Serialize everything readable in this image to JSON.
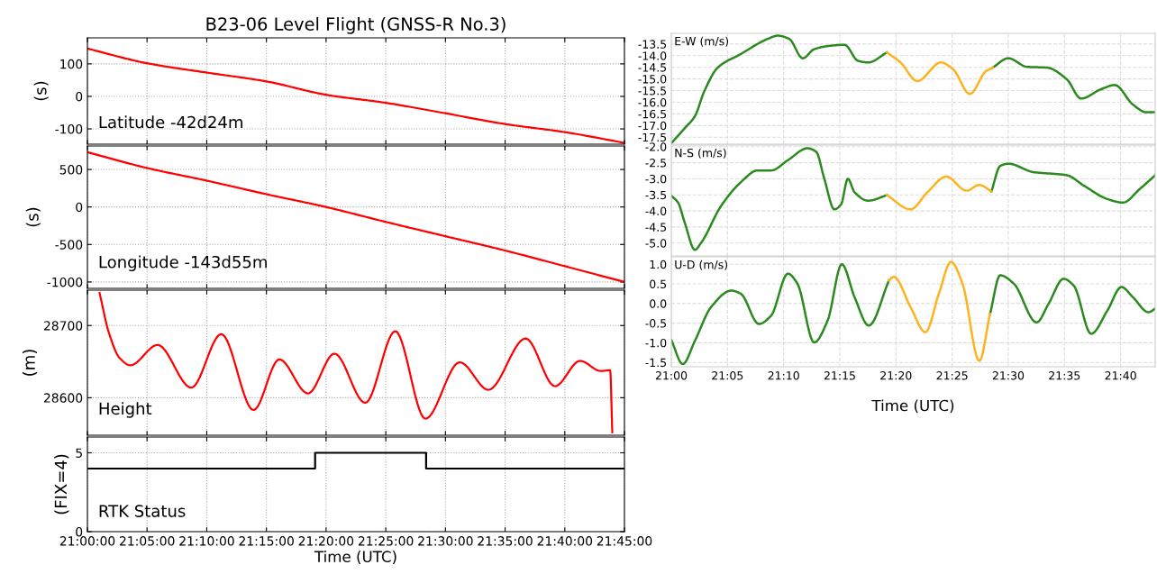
{
  "chart_data": [
    {
      "type": "line",
      "title": "B23-06 Level Flight (GNSS-R No.3)",
      "ylabel": "(s)",
      "annotations": [
        "Latitude -42d24m"
      ],
      "tick_labels": "y",
      "grid": true,
      "x": [
        21.0,
        21.083,
        21.167,
        21.25,
        21.333,
        21.417,
        21.5,
        21.583,
        21.667,
        21.75
      ],
      "series": [
        {
          "color": "#ff0000",
          "values": [
            147,
            102,
            73,
            46,
            5,
            -20,
            -52,
            -85,
            -110,
            -143
          ]
        }
      ],
      "xlim": [
        21.0,
        21.75
      ],
      "xticks": [
        {
          "value": 21.0,
          "label": null
        },
        {
          "value": 21.0833,
          "label": null
        },
        {
          "value": 21.1667,
          "label": null
        },
        {
          "value": 21.25,
          "label": null
        },
        {
          "value": 21.3333,
          "label": null
        },
        {
          "value": 21.4167,
          "label": null
        },
        {
          "value": 21.5,
          "label": null
        },
        {
          "value": 21.5833,
          "label": null
        },
        {
          "value": 21.6667,
          "label": null
        },
        {
          "value": 21.75,
          "label": null
        }
      ],
      "ylim": [
        -147,
        180
      ],
      "yticks": [
        -100,
        0,
        100
      ]
    },
    {
      "type": "line",
      "ylabel": "(s)",
      "annotations": [
        "Longitude -143d55m"
      ],
      "tick_labels": "y",
      "grid": true,
      "x": [
        21.0,
        21.083,
        21.167,
        21.25,
        21.333,
        21.417,
        21.5,
        21.583,
        21.667,
        21.75
      ],
      "series": [
        {
          "color": "#ff0000",
          "values": [
            730,
            520,
            350,
            170,
            0,
            -200,
            -390,
            -580,
            -790,
            -1000
          ]
        }
      ],
      "xlim": [
        21.0,
        21.75
      ],
      "xticks": [
        {
          "value": 21.0,
          "label": null
        },
        {
          "value": 21.0833,
          "label": null
        },
        {
          "value": 21.1667,
          "label": null
        },
        {
          "value": 21.25,
          "label": null
        },
        {
          "value": 21.3333,
          "label": null
        },
        {
          "value": 21.4167,
          "label": null
        },
        {
          "value": 21.5,
          "label": null
        },
        {
          "value": 21.5833,
          "label": null
        },
        {
          "value": 21.6667,
          "label": null
        },
        {
          "value": 21.75,
          "label": null
        }
      ],
      "ylim": [
        -1085,
        813
      ],
      "yticks": [
        -1000,
        -500,
        0,
        500
      ]
    },
    {
      "type": "line",
      "ylabel": "(m)",
      "annotations": [
        "Height"
      ],
      "tick_labels": "y",
      "grid": true,
      "x": [
        21.017,
        21.03,
        21.045,
        21.06,
        21.098,
        21.145,
        21.187,
        21.232,
        21.268,
        21.308,
        21.345,
        21.388,
        21.43,
        21.472,
        21.52,
        21.56,
        21.612,
        21.653,
        21.688,
        21.717,
        21.73,
        21.733
      ],
      "series": [
        {
          "color": "#ff0000",
          "values": [
            28745,
            28690,
            28655,
            28645,
            28673,
            28614,
            28688,
            28583,
            28653,
            28606,
            28661,
            28593,
            28692,
            28571,
            28649,
            28611,
            28682,
            28616,
            28651,
            28637,
            28638,
            28552
          ]
        }
      ],
      "xlim": [
        21.0,
        21.75
      ],
      "xticks": [
        {
          "value": 21.0,
          "label": null
        },
        {
          "value": 21.0833,
          "label": null
        },
        {
          "value": 21.1667,
          "label": null
        },
        {
          "value": 21.25,
          "label": null
        },
        {
          "value": 21.3333,
          "label": null
        },
        {
          "value": 21.4167,
          "label": null
        },
        {
          "value": 21.5,
          "label": null
        },
        {
          "value": 21.5833,
          "label": null
        },
        {
          "value": 21.6667,
          "label": null
        },
        {
          "value": 21.75,
          "label": null
        }
      ],
      "ylim": [
        28548,
        28749
      ],
      "yticks": [
        28600,
        28700
      ]
    },
    {
      "type": "step",
      "xlabel": "Time (UTC)",
      "ylabel": "(FIX=4)",
      "annotations": [
        "RTK Status"
      ],
      "grid": true,
      "x": [
        21.0,
        21.318,
        21.473,
        21.75
      ],
      "series": [
        {
          "color": "#000000",
          "values": [
            4,
            5,
            4,
            4
          ]
        }
      ],
      "xlim": [
        21.0,
        21.75
      ],
      "xticks": [
        {
          "value": 21.0,
          "label": "21:00:00"
        },
        {
          "value": 21.0833,
          "label": "21:05:00"
        },
        {
          "value": 21.1667,
          "label": "21:10:00"
        },
        {
          "value": 21.25,
          "label": "21:15:00"
        },
        {
          "value": 21.3333,
          "label": "21:20:00"
        },
        {
          "value": 21.4167,
          "label": "21:25:00"
        },
        {
          "value": 21.5,
          "label": "21:30:00"
        },
        {
          "value": 21.5833,
          "label": "21:35:00"
        },
        {
          "value": 21.6667,
          "label": "21:40:00"
        },
        {
          "value": 21.75,
          "label": "21:45:00"
        }
      ],
      "ylim": [
        0,
        6
      ],
      "yticks": [
        0,
        5
      ]
    },
    {
      "type": "line",
      "annotations": [
        "E-W (m/s)"
      ],
      "tick_labels": "y",
      "grid": true,
      "x": [
        21.0,
        21.02,
        21.035,
        21.049,
        21.069,
        21.103,
        21.143,
        21.158,
        21.175,
        21.195,
        21.212,
        21.237,
        21.257,
        21.277,
        21.292,
        21.32,
        21.34,
        21.365,
        21.4,
        21.418,
        21.443,
        21.467,
        21.477,
        21.5,
        21.528,
        21.557,
        21.587,
        21.608,
        21.637,
        21.658,
        21.685,
        21.705,
        21.718
      ],
      "series": [
        {
          "color": "#2a8a1e",
          "values": [
            -17.76,
            -17.11,
            -16.6,
            -15.52,
            -14.51,
            -13.93,
            -13.28,
            -13.14,
            -13.28,
            -14.11,
            -13.72,
            -13.57,
            -13.53,
            -14.22,
            -14.29,
            -13.86,
            null,
            null,
            null,
            null,
            null,
            null,
            -14.51,
            -14.11,
            -14.48,
            -14.51,
            -15.02,
            -15.84,
            -15.45,
            -15.26,
            -16.1,
            -16.43,
            -16.43
          ]
        },
        {
          "color": "#ffb21e",
          "x": [
            21.32,
            21.34,
            21.365,
            21.4,
            21.418,
            21.443,
            21.467,
            21.477
          ],
          "values": [
            -13.86,
            -14.29,
            -15.09,
            -14.29,
            -14.58,
            -15.64,
            -14.66,
            -14.51
          ]
        }
      ],
      "xlim": [
        21.0,
        21.718
      ],
      "xticks": [
        {
          "value": 21.0,
          "label": null
        },
        {
          "value": 21.0833,
          "label": null
        },
        {
          "value": 21.1667,
          "label": null
        },
        {
          "value": 21.25,
          "label": null
        },
        {
          "value": 21.3333,
          "label": null
        },
        {
          "value": 21.4167,
          "label": null
        },
        {
          "value": 21.5,
          "label": null
        },
        {
          "value": 21.5833,
          "label": null
        },
        {
          "value": 21.6667,
          "label": null
        }
      ],
      "ylim": [
        -17.8,
        -13.04
      ],
      "yticks": [
        -17.5,
        {
          "value": -17,
          "label": "-17.0"
        },
        -16.5,
        {
          "value": -16,
          "label": "-16.0"
        },
        -15.5,
        {
          "value": -15,
          "label": "-15.0"
        },
        -14.5,
        {
          "value": -14,
          "label": "-14.0"
        },
        -13.5
      ]
    },
    {
      "type": "line",
      "annotations": [
        "N-S (m/s)"
      ],
      "tick_labels": "y",
      "grid": true,
      "x": [
        21.0,
        21.01,
        21.02,
        21.035,
        21.044,
        21.074,
        21.103,
        21.128,
        21.148,
        21.173,
        21.202,
        21.215,
        21.227,
        21.242,
        21.252,
        21.262,
        21.272,
        21.292,
        21.32,
        21.355,
        21.38,
        21.408,
        21.438,
        21.457,
        21.475,
        21.488,
        21.5,
        21.537,
        21.587,
        21.612,
        21.647,
        21.67,
        21.695,
        21.718
      ],
      "series": [
        {
          "color": "#2a8a1e",
          "values": [
            -3.53,
            -3.74,
            -4.37,
            -5.21,
            -5.0,
            -3.84,
            -3.11,
            -2.74,
            -2.74,
            -2.42,
            -2.05,
            -2.16,
            -3.0,
            -3.95,
            -3.79,
            -3.0,
            -3.42,
            -3.68,
            -3.51,
            null,
            null,
            null,
            null,
            null,
            -3.39,
            -2.6,
            -2.53,
            -2.79,
            -2.89,
            -3.21,
            -3.63,
            -3.74,
            -3.32,
            -2.89
          ]
        },
        {
          "color": "#ffb21e",
          "x": [
            21.32,
            21.355,
            21.38,
            21.408,
            21.438,
            21.457,
            21.475
          ],
          "values": [
            -3.51,
            -3.95,
            -3.42,
            -2.93,
            -3.37,
            -3.19,
            -3.39
          ]
        }
      ],
      "xlim": [
        21.0,
        21.718
      ],
      "xticks": [
        {
          "value": 21.0,
          "label": null
        },
        {
          "value": 21.0833,
          "label": null
        },
        {
          "value": 21.1667,
          "label": null
        },
        {
          "value": 21.25,
          "label": null
        },
        {
          "value": 21.3333,
          "label": null
        },
        {
          "value": 21.4167,
          "label": null
        },
        {
          "value": 21.5,
          "label": null
        },
        {
          "value": 21.5833,
          "label": null
        },
        {
          "value": 21.6667,
          "label": null
        }
      ],
      "ylim": [
        -5.4,
        -1.95
      ],
      "yticks": [
        {
          "value": -5,
          "label": "-5.0"
        },
        -4.5,
        {
          "value": -4,
          "label": "-4.0"
        },
        -3.5,
        {
          "value": -3,
          "label": "-3.0"
        },
        -2.5,
        {
          "value": -2,
          "label": "-2.0"
        }
      ]
    },
    {
      "type": "line",
      "xlabel": "Time (UTC)",
      "annotations": [
        "U-D (m/s)"
      ],
      "grid": true,
      "x": [
        21.0,
        21.017,
        21.035,
        21.059,
        21.089,
        21.103,
        21.13,
        21.148,
        21.173,
        21.187,
        21.212,
        21.232,
        21.253,
        21.272,
        21.293,
        21.323,
        21.33,
        21.355,
        21.377,
        21.397,
        21.415,
        21.432,
        21.457,
        21.473,
        21.488,
        21.508,
        21.542,
        21.56,
        21.582,
        21.597,
        21.623,
        21.647,
        21.668,
        21.685,
        21.708,
        21.718
      ],
      "series": [
        {
          "color": "#2a8a1e",
          "values": [
            -0.93,
            -1.54,
            -0.95,
            -0.09,
            0.33,
            0.25,
            -0.52,
            -0.31,
            0.76,
            0.51,
            -0.99,
            -0.43,
            1.0,
            0.16,
            -0.56,
            0.59,
            null,
            null,
            null,
            null,
            null,
            null,
            null,
            -0.26,
            0.72,
            0.51,
            -0.48,
            0.0,
            0.63,
            0.46,
            -0.77,
            -0.18,
            0.42,
            0.16,
            -0.22,
            -0.13
          ]
        },
        {
          "color": "#ffb21e",
          "x": [
            21.323,
            21.33,
            21.355,
            21.377,
            21.397,
            21.415,
            21.432,
            21.457,
            21.473
          ],
          "values": [
            0.59,
            0.68,
            -0.09,
            -0.73,
            0.25,
            1.06,
            0.51,
            -1.46,
            -0.26
          ]
        }
      ],
      "xlim": [
        21.0,
        21.718
      ],
      "xticks": [
        {
          "value": 21.0,
          "label": "21:00"
        },
        {
          "value": 21.0833,
          "label": "21:05"
        },
        {
          "value": 21.1667,
          "label": "21:10"
        },
        {
          "value": 21.25,
          "label": "21:15"
        },
        {
          "value": 21.3333,
          "label": "21:20"
        },
        {
          "value": 21.4167,
          "label": "21:25"
        },
        {
          "value": 21.5,
          "label": "21:30"
        },
        {
          "value": 21.5833,
          "label": "21:35"
        },
        {
          "value": 21.6667,
          "label": "21:40"
        }
      ],
      "ylim": [
        -1.61,
        1.19
      ],
      "yticks": [
        -1.5,
        {
          "value": -1,
          "label": "-1.0"
        },
        -0.5,
        {
          "value": 0,
          "label": "0.0"
        },
        0.5,
        {
          "value": 1,
          "label": "1.0"
        }
      ]
    }
  ]
}
